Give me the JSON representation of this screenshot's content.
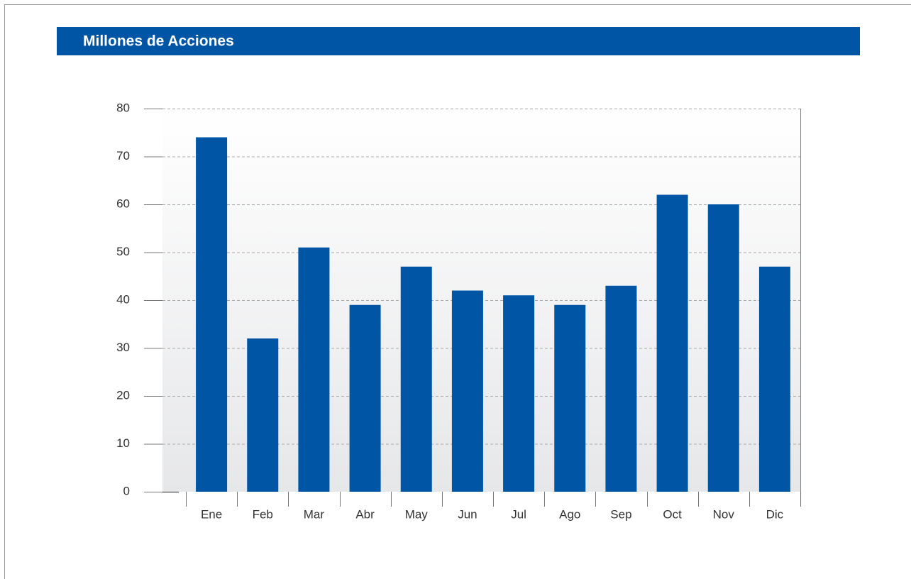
{
  "chart_data": {
    "type": "bar",
    "title": "Millones de Acciones",
    "categories": [
      "Ene",
      "Feb",
      "Mar",
      "Abr",
      "May",
      "Jun",
      "Jul",
      "Ago",
      "Sep",
      "Oct",
      "Nov",
      "Dic"
    ],
    "values": [
      74,
      32,
      51,
      39,
      47,
      42,
      41,
      39,
      43,
      62,
      60,
      47
    ],
    "color": "#0055a5",
    "ylim": [
      0,
      80
    ],
    "yticks": [
      0,
      10,
      20,
      30,
      40,
      50,
      60,
      70,
      80
    ],
    "grid": true
  }
}
